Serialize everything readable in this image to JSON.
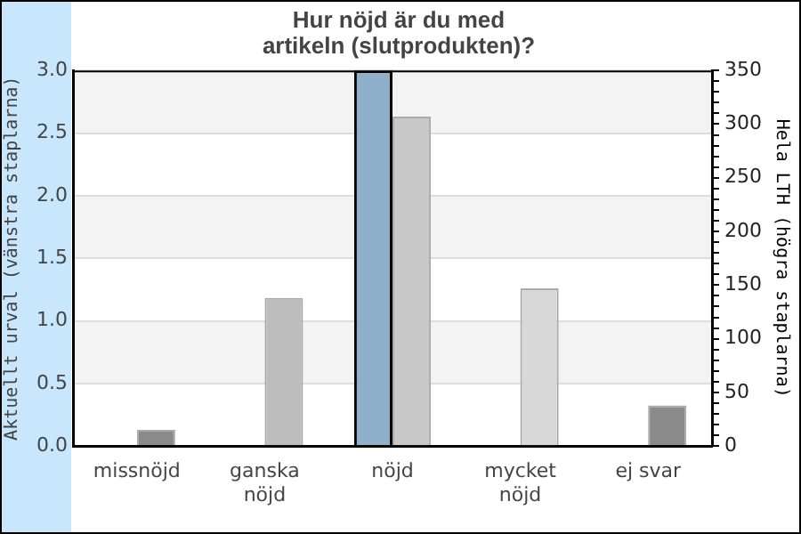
{
  "chart_data": {
    "type": "bar",
    "title": "Hur nöjd är du med\nartikeln (slutprodukten)?",
    "ylabel": "Aktuellt urval (vänstra staplarna)",
    "y2label": "Hela LTH (högra staplarna)",
    "categories": [
      "missnöjd",
      "ganska nöjd",
      "nöjd",
      "mycket nöjd",
      "ej svar"
    ],
    "series": [
      {
        "name": null,
        "color": "#8fb0cb",
        "values": [
          0,
          0,
          3,
          0,
          0
        ]
      },
      {
        "name": null,
        "colors": [
          "#8a8a8a",
          "#bdbdbd",
          "#c8c8c8",
          "#d8d8d8",
          "#8a8a8a"
        ],
        "axis": "y2",
        "values": [
          15,
          138,
          307,
          147,
          38
        ]
      }
    ],
    "ylim": [
      0,
      3
    ],
    "yticks": [
      {
        "value": 0,
        "label": "0.0"
      },
      {
        "value": 0.5,
        "label": "0.5"
      },
      {
        "value": 1,
        "label": "1.0"
      },
      {
        "value": 1.5,
        "label": "1.5"
      },
      {
        "value": 2,
        "label": "2.0"
      },
      {
        "value": 2.5,
        "label": "2.5"
      },
      {
        "value": 3,
        "label": "3.0"
      }
    ],
    "y2lim": [
      0,
      350
    ],
    "y2ticks": [
      0,
      {
        "value": 10,
        "label": null
      },
      {
        "value": 20,
        "label": null
      },
      {
        "value": 30,
        "label": null
      },
      {
        "value": 40,
        "label": null
      },
      50,
      {
        "value": 60,
        "label": null
      },
      {
        "value": 70,
        "label": null
      },
      {
        "value": 80,
        "label": null
      },
      {
        "value": 90,
        "label": null
      },
      100,
      {
        "value": 110,
        "label": null
      },
      {
        "value": 120,
        "label": null
      },
      {
        "value": 130,
        "label": null
      },
      {
        "value": 140,
        "label": null
      },
      150,
      {
        "value": 160,
        "label": null
      },
      {
        "value": 170,
        "label": null
      },
      {
        "value": 180,
        "label": null
      },
      {
        "value": 190,
        "label": null
      },
      200,
      {
        "value": 210,
        "label": null
      },
      {
        "value": 220,
        "label": null
      },
      {
        "value": 230,
        "label": null
      },
      {
        "value": 240,
        "label": null
      },
      250,
      {
        "value": 260,
        "label": null
      },
      {
        "value": 270,
        "label": null
      },
      {
        "value": 280,
        "label": null
      },
      {
        "value": 290,
        "label": null
      },
      300,
      {
        "value": 310,
        "label": null
      },
      {
        "value": 320,
        "label": null
      },
      {
        "value": 330,
        "label": null
      },
      {
        "value": 340,
        "label": null
      },
      350
    ],
    "grid": "y",
    "legend": false
  }
}
